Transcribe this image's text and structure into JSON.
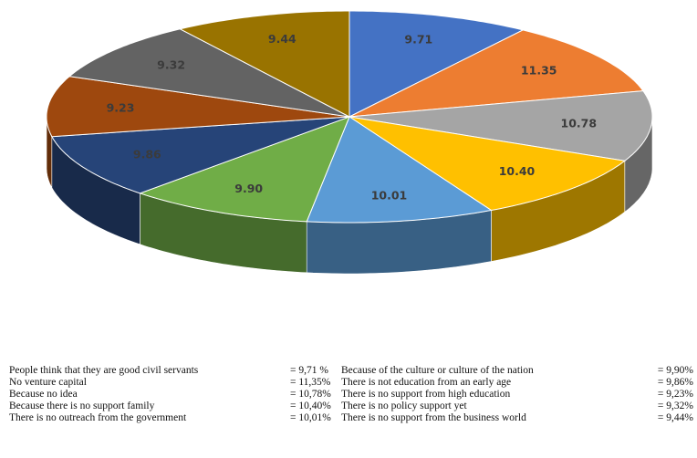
{
  "chart_data": {
    "type": "pie",
    "three_d": true,
    "slices": [
      {
        "value": 9.71,
        "label": "9.71",
        "color": "#4472C4"
      },
      {
        "value": 11.35,
        "label": "11.35",
        "color": "#ED7D31"
      },
      {
        "value": 10.78,
        "label": "10.78",
        "color": "#A5A5A5"
      },
      {
        "value": 10.4,
        "label": "10.40",
        "color": "#FFC000"
      },
      {
        "value": 10.01,
        "label": "10.01",
        "color": "#5B9BD5"
      },
      {
        "value": 9.9,
        "label": "9.90",
        "color": "#70AD47"
      },
      {
        "value": 9.86,
        "label": "9.86",
        "color": "#264478"
      },
      {
        "value": 9.23,
        "label": "9.23",
        "color": "#9E480E"
      },
      {
        "value": 9.32,
        "label": "9.32",
        "color": "#636363"
      },
      {
        "value": 9.44,
        "label": "9.44",
        "color": "#997300"
      }
    ],
    "legend": [
      {
        "left_text": "People think that they are good civil servants",
        "left_value": "= 9,71 %",
        "right_text": "Because of the culture or culture of the nation",
        "right_value": "= 9,90%"
      },
      {
        "left_text": "No venture capital",
        "left_value": "= 11,35%",
        "right_text": "There is not education from an early age",
        "right_value": "= 9,86%"
      },
      {
        "left_text": "Because no idea",
        "left_value": "= 10,78%",
        "right_text": "There is no support from high education",
        "right_value": "= 9,23%"
      },
      {
        "left_text": "Because there is no support family",
        "left_value": "= 10,40%",
        "right_text": "There is no policy support yet",
        "right_value": "= 9,32%"
      },
      {
        "left_text": "There is no outreach from the government",
        "left_value": "= 10,01%",
        "right_text": "There is no support from the business world",
        "right_value": "= 9,44%"
      }
    ]
  }
}
